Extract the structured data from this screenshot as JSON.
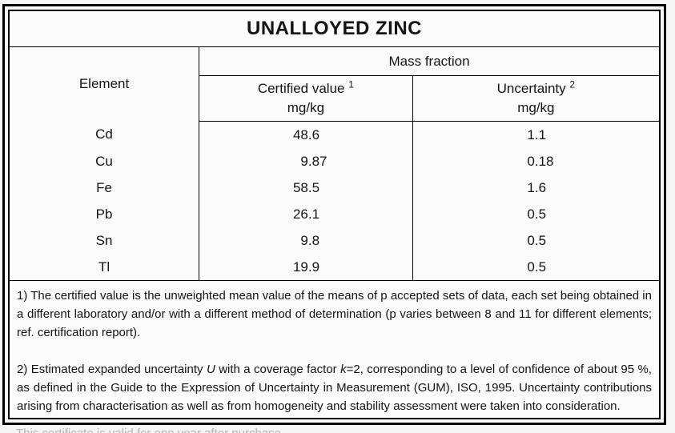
{
  "title": "UNALLOYED ZINC",
  "table": {
    "headers": {
      "element": "Element",
      "group": "Mass fraction",
      "certified_label": "Certified value",
      "certified_sup": "1",
      "certified_unit": "mg/kg",
      "uncertainty_label": "Uncertainty",
      "uncertainty_sup": "2",
      "uncertainty_unit": "mg/kg"
    },
    "rows": [
      {
        "element": "Cd",
        "certified": "48.6",
        "uncertainty": "1.1"
      },
      {
        "element": "Cu",
        "certified": "9.87",
        "uncertainty": "0.18"
      },
      {
        "element": "Fe",
        "certified": "58.5",
        "uncertainty": "1.6"
      },
      {
        "element": "Pb",
        "certified": "26.1",
        "uncertainty": "0.5"
      },
      {
        "element": "Sn",
        "certified": "9.8",
        "uncertainty": "0.5"
      },
      {
        "element": "Tl",
        "certified": "19.9",
        "uncertainty": "0.5"
      }
    ]
  },
  "footnotes": [
    {
      "segments": [
        {
          "text": "1) The certified value is the unweighted mean value of the means of p accepted sets of data, each set being obtained in a different laboratory and/or with a different method of determination (p varies between 8 and 11 for different elements; ref. certification report).",
          "italic": false
        }
      ]
    },
    {
      "segments": [
        {
          "text": "2) Estimated expanded uncertainty ",
          "italic": false
        },
        {
          "text": "U",
          "italic": true
        },
        {
          "text": " with a coverage factor ",
          "italic": false
        },
        {
          "text": "k",
          "italic": true
        },
        {
          "text": "=2, corresponding to a level of confidence of about 95 %, as defined in the Guide to the Expression of Uncertainty in Measurement (GUM), ISO, 1995. Uncertainty contributions arising from characterisation as well as from homogeneity and stability assessment were taken into consideration.",
          "italic": false
        }
      ]
    }
  ],
  "footer_partial": "This certificate is valid for one year after purchase.",
  "colors": {
    "page_background": "#f6f6f6",
    "table_background": "#fafafa",
    "border": "#000000",
    "text": "#141414",
    "faint_footer_text": "#b4b4b4"
  }
}
